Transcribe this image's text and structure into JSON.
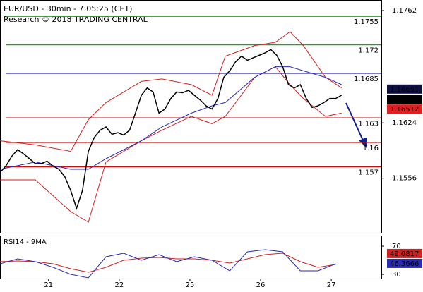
{
  "chart_data": {
    "type": "line",
    "title": "EUR/USD - 30min - 7:05:25 (CET)",
    "subtitle": "Research © 2018 TRADING CENTRAL",
    "xlim": [
      0,
      259
    ],
    "xticks": [
      {
        "value": 33,
        "label": "21"
      },
      {
        "value": 81,
        "label": "22"
      },
      {
        "value": 129,
        "label": "25"
      },
      {
        "value": 177,
        "label": "26"
      },
      {
        "value": 225,
        "label": "27"
      }
    ],
    "ylim": [
      1.1489,
      1.1775
    ],
    "yticks": [
      1.1762,
      1.1624,
      1.1556
    ],
    "levels": [
      {
        "value": 1.1755,
        "color": "#2e9a2e"
      },
      {
        "value": 1.172,
        "color": "#2e9a2e"
      },
      {
        "value": 1.1685,
        "color": "#2a2ab8"
      },
      {
        "value": 1.163,
        "color": "#cc1010"
      },
      {
        "value": 1.16,
        "color": "#cc1010"
      },
      {
        "value": 1.157,
        "color": "#cc1010"
      }
    ],
    "price": {
      "color": "#000000",
      "x": [
        0,
        4,
        8,
        12,
        16,
        20,
        24,
        28,
        32,
        36,
        40,
        44,
        48,
        52,
        56,
        60,
        64,
        68,
        72,
        76,
        80,
        84,
        88,
        92,
        96,
        100,
        104,
        108,
        112,
        116,
        120,
        124,
        128,
        132,
        136,
        140,
        144,
        148,
        152,
        156,
        160,
        164,
        168,
        172,
        176,
        180,
        184,
        188,
        192,
        196,
        200,
        204,
        208,
        212,
        216,
        220,
        224,
        228,
        232
      ],
      "values": [
        1.1563,
        1.1571,
        1.1583,
        1.1591,
        1.1586,
        1.158,
        1.1574,
        1.1574,
        1.1577,
        1.1571,
        1.1567,
        1.1558,
        1.1541,
        1.1519,
        1.1541,
        1.1589,
        1.1606,
        1.1615,
        1.1619,
        1.161,
        1.1612,
        1.1609,
        1.1615,
        1.1636,
        1.1658,
        1.1667,
        1.1662,
        1.1636,
        1.1641,
        1.1654,
        1.1662,
        1.1661,
        1.1664,
        1.1658,
        1.1652,
        1.1645,
        1.1641,
        1.1654,
        1.168,
        1.1688,
        1.1699,
        1.1706,
        1.1701,
        1.1704,
        1.1707,
        1.171,
        1.1714,
        1.1707,
        1.1693,
        1.1671,
        1.1667,
        1.1671,
        1.1654,
        1.1643,
        1.1645,
        1.1649,
        1.1654,
        1.1654,
        1.1658
      ]
    },
    "bollinger": {
      "band_color": "#d02020",
      "middle_color": "#2a2ab8",
      "x": [
        0,
        24,
        48,
        60,
        72,
        96,
        110,
        130,
        144,
        153,
        173,
        187,
        197,
        206,
        221,
        232
      ],
      "upper": [
        1.1602,
        1.1597,
        1.1589,
        1.1628,
        1.1649,
        1.1675,
        1.1678,
        1.1671,
        1.1658,
        1.1706,
        1.1719,
        1.1723,
        1.1736,
        1.1719,
        1.168,
        1.1667
      ],
      "middle": [
        1.1567,
        1.1576,
        1.1567,
        1.1567,
        1.158,
        1.1602,
        1.1619,
        1.1636,
        1.1645,
        1.1649,
        1.168,
        1.1693,
        1.1693,
        1.1688,
        1.168,
        1.1671
      ],
      "lower": [
        1.1554,
        1.1554,
        1.1515,
        1.1502,
        1.1576,
        1.1602,
        1.1615,
        1.1632,
        1.1623,
        1.1632,
        1.168,
        1.1693,
        1.1671,
        1.1654,
        1.1632,
        1.1636
      ]
    },
    "price_markers": [
      {
        "value": 1.16651,
        "color": "#101040"
      },
      {
        "value": 1.16527,
        "color": "#000000"
      },
      {
        "value": 1.16512,
        "color": "#e02020"
      }
    ],
    "rsi": {
      "title": "RSI14 - 9MA",
      "ylim": [
        24,
        84
      ],
      "yticks": [
        70,
        30
      ],
      "color": "#2a2ab8",
      "ma_color": "#d02020",
      "x": [
        0,
        12,
        24,
        36,
        48,
        60,
        72,
        84,
        96,
        108,
        120,
        132,
        144,
        156,
        168,
        180,
        192,
        204,
        216,
        228
      ],
      "values": [
        45,
        52,
        48,
        40,
        30,
        25,
        55,
        60,
        50,
        58,
        48,
        55,
        50,
        35,
        62,
        65,
        62,
        35,
        35,
        45
      ],
      "ma": [
        48,
        49,
        48,
        45,
        38,
        33,
        40,
        50,
        53,
        54,
        52,
        52,
        50,
        46,
        52,
        58,
        60,
        48,
        40,
        44
      ],
      "last_value": 46.3666,
      "ma_last_value": 49.0817
    }
  }
}
